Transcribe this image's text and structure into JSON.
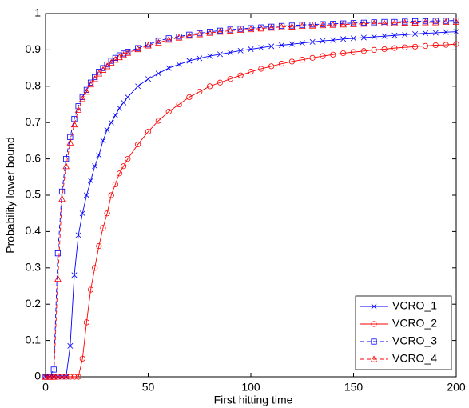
{
  "chart_data": {
    "type": "line",
    "xlabel": "First hitting time",
    "ylabel": "Probability lower bound",
    "x": [
      0,
      2,
      4,
      6,
      8,
      10,
      12,
      14,
      16,
      18,
      20,
      22,
      24,
      26,
      28,
      30,
      32,
      34,
      36,
      38,
      40,
      45,
      50,
      55,
      60,
      65,
      70,
      75,
      80,
      85,
      90,
      95,
      100,
      105,
      110,
      115,
      120,
      125,
      130,
      135,
      140,
      145,
      150,
      155,
      160,
      165,
      170,
      175,
      180,
      185,
      190,
      195,
      200
    ],
    "xlim": [
      0,
      200
    ],
    "xticks": [
      0,
      50,
      100,
      150,
      200
    ],
    "ylim": [
      0,
      1
    ],
    "yticks": [
      0,
      0.1,
      0.2,
      0.3,
      0.4,
      0.5,
      0.6,
      0.7,
      0.8,
      0.9,
      1
    ],
    "grid": false,
    "legend": "lower right",
    "series": [
      {
        "name": "VCRO_1",
        "color": "#0000ff",
        "marker": "x",
        "line_style": "solid",
        "values": [
          0,
          0,
          0,
          0,
          0,
          0,
          0.085,
          0.28,
          0.39,
          0.45,
          0.5,
          0.54,
          0.58,
          0.61,
          0.65,
          0.68,
          0.7,
          0.72,
          0.74,
          0.755,
          0.77,
          0.8,
          0.82,
          0.835,
          0.85,
          0.86,
          0.87,
          0.877,
          0.883,
          0.888,
          0.893,
          0.898,
          0.902,
          0.906,
          0.91,
          0.913,
          0.916,
          0.919,
          0.922,
          0.925,
          0.927,
          0.93,
          0.932,
          0.934,
          0.936,
          0.938,
          0.94,
          0.942,
          0.944,
          0.946,
          0.947,
          0.949,
          0.95
        ]
      },
      {
        "name": "VCRO_2",
        "color": "#ff0000",
        "marker": "circle",
        "line_style": "solid",
        "values": [
          0,
          0,
          0,
          0,
          0,
          0,
          0,
          0,
          0,
          0.05,
          0.15,
          0.24,
          0.3,
          0.36,
          0.41,
          0.45,
          0.5,
          0.53,
          0.56,
          0.58,
          0.6,
          0.64,
          0.675,
          0.705,
          0.73,
          0.75,
          0.77,
          0.785,
          0.8,
          0.81,
          0.82,
          0.83,
          0.84,
          0.848,
          0.855,
          0.862,
          0.868,
          0.873,
          0.878,
          0.883,
          0.887,
          0.891,
          0.894,
          0.897,
          0.9,
          0.902,
          0.905,
          0.907,
          0.909,
          0.911,
          0.913,
          0.914,
          0.916
        ]
      },
      {
        "name": "VCRO_3",
        "color": "#0000ff",
        "marker": "square",
        "line_style": "dashed",
        "values": [
          0,
          0,
          0.02,
          0.34,
          0.51,
          0.6,
          0.66,
          0.71,
          0.745,
          0.77,
          0.79,
          0.81,
          0.825,
          0.84,
          0.85,
          0.86,
          0.87,
          0.878,
          0.885,
          0.89,
          0.895,
          0.905,
          0.915,
          0.925,
          0.932,
          0.937,
          0.942,
          0.946,
          0.95,
          0.953,
          0.956,
          0.958,
          0.96,
          0.962,
          0.964,
          0.966,
          0.967,
          0.969,
          0.97,
          0.971,
          0.972,
          0.973,
          0.974,
          0.975,
          0.976,
          0.977,
          0.977,
          0.978,
          0.979,
          0.979,
          0.98,
          0.98,
          0.981
        ]
      },
      {
        "name": "VCRO_4",
        "color": "#ff0000",
        "marker": "triangle",
        "line_style": "dashed",
        "values": [
          0,
          0,
          0,
          0.27,
          0.49,
          0.58,
          0.645,
          0.695,
          0.735,
          0.765,
          0.785,
          0.805,
          0.82,
          0.835,
          0.845,
          0.855,
          0.865,
          0.873,
          0.88,
          0.886,
          0.892,
          0.902,
          0.912,
          0.92,
          0.928,
          0.934,
          0.939,
          0.943,
          0.947,
          0.95,
          0.953,
          0.955,
          0.957,
          0.959,
          0.961,
          0.963,
          0.964,
          0.966,
          0.967,
          0.968,
          0.969,
          0.97,
          0.971,
          0.972,
          0.973,
          0.973,
          0.974,
          0.975,
          0.975,
          0.976,
          0.976,
          0.977,
          0.977
        ]
      }
    ]
  }
}
